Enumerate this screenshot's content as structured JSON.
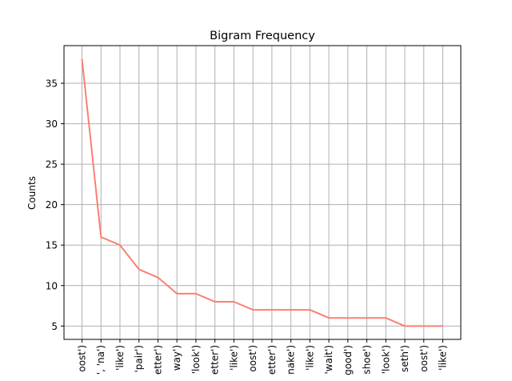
{
  "chart_data": {
    "type": "line",
    "title": "Bigram Frequency",
    "xlabel": "",
    "ylabel": "Counts",
    "categories": [
      "oost')",
      "', 'na')",
      "'like')",
      "'pair')",
      "etter')",
      "way')",
      "'look')",
      "etter')",
      "'like')",
      "oost')",
      "etter')",
      "nake')",
      "'like')",
      "'wait')",
      "good')",
      "shoe')",
      "'look')",
      "seth')",
      "oost')",
      "'like')"
    ],
    "values": [
      38,
      16,
      15,
      12,
      11,
      9,
      9,
      8,
      8,
      7,
      7,
      7,
      7,
      6,
      6,
      6,
      6,
      5,
      5,
      5
    ],
    "yticks": [
      5,
      10,
      15,
      20,
      25,
      30,
      35
    ],
    "ylim": [
      3.35,
      39.65
    ],
    "grid": true,
    "line_color": "#fa8072",
    "grid_color": "#b0b0b0"
  }
}
